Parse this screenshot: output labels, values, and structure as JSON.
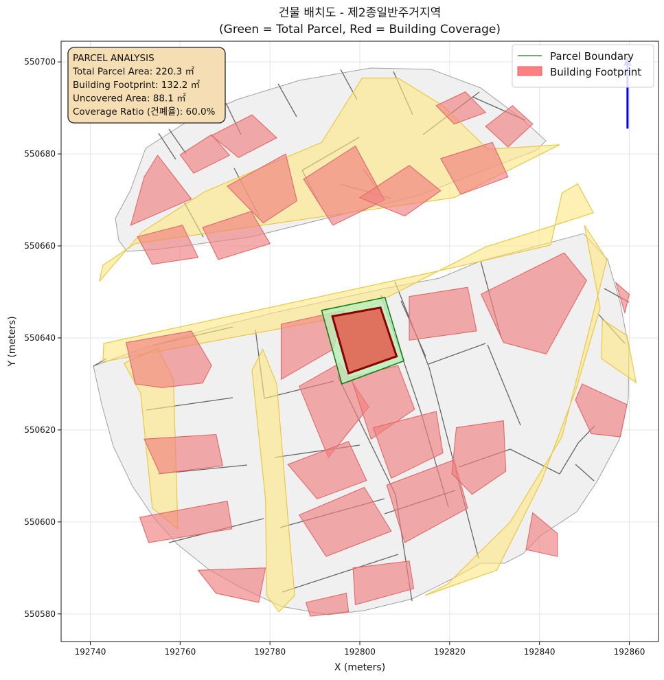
{
  "chart_data": {
    "type": "map",
    "title": "건물 배치도 - 제2종일반주거지역",
    "subtitle": "(Green = Total Parcel, Red = Building Coverage)",
    "xlabel": "X (meters)",
    "ylabel": "Y (meters)",
    "xlim": [
      192733.5,
      192866.5
    ],
    "ylim": [
      550574,
      550704.5
    ],
    "xticks": [
      192740,
      192760,
      192780,
      192800,
      192820,
      192840,
      192860
    ],
    "yticks": [
      550580,
      550600,
      550620,
      550640,
      550660,
      550680,
      550700
    ],
    "grid": true,
    "legend": {
      "placement": "top-right",
      "entries": [
        {
          "label": "Parcel Boundary",
          "kind": "line",
          "color": "#1a7a1a"
        },
        {
          "label": "Building Footprint",
          "kind": "patch",
          "color": "#ff8080"
        }
      ]
    },
    "info_box": {
      "placement": "top-left",
      "lines": [
        "PARCEL ANALYSIS",
        "Total Parcel Area: 220.3 ㎡",
        "Building Footprint: 132.2 ㎡",
        "Uncovered Area: 88.1 ㎡",
        "Coverage Ratio (건폐율): 60.0%"
      ]
    },
    "target_parcel": {
      "area_m2": 220.3,
      "boundary": [
        [
          192791.5,
          550646
        ],
        [
          192805.6,
          550648.8
        ],
        [
          192809.8,
          550635
        ],
        [
          192796,
          550630
        ]
      ],
      "building_footprint_m2": 132.2,
      "building": [
        [
          192793.9,
          550644.7
        ],
        [
          192804.6,
          550646.6
        ],
        [
          192808.2,
          550636
        ],
        [
          192797.5,
          550632.3
        ]
      ],
      "uncovered_m2": 88.1,
      "coverage_ratio_pct": 60.0
    },
    "north_arrow": {
      "x": 192859.6,
      "y_top": 550701,
      "y_bottom": 550685.5
    },
    "roads": [
      [
        [
          192742,
          550652.3
        ],
        [
          192751.5,
          550663
        ],
        [
          192765.5,
          550671.8
        ],
        [
          192791.5,
          550682.5
        ],
        [
          192800.5,
          550696.5
        ],
        [
          192808.5,
          550696.5
        ],
        [
          192818.5,
          550690.5
        ],
        [
          192828.5,
          550681
        ],
        [
          192844.5,
          550682
        ],
        [
          192821,
          550670.5
        ],
        [
          192750,
          550660.5
        ],
        [
          192742.8,
          550655.8
        ]
      ],
      [
        [
          192743,
          550638.8
        ],
        [
          192820.5,
          550655.2
        ],
        [
          192842.5,
          550660.2
        ],
        [
          192845,
          550671.5
        ],
        [
          192848.5,
          550673.5
        ],
        [
          192852,
          550667.2
        ],
        [
          192845,
          550665
        ],
        [
          192828,
          550659.8
        ],
        [
          192798.5,
          550645
        ],
        [
          192742.8,
          550634.8
        ]
      ],
      [
        [
          192747.5,
          550634.5
        ],
        [
          192751.2,
          550628
        ],
        [
          192753.8,
          550603
        ],
        [
          192759.5,
          550598.5
        ],
        [
          192758.5,
          550631
        ],
        [
          192755,
          550637.8
        ]
      ],
      [
        [
          192778.4,
          550637.5
        ],
        [
          192781.5,
          550630
        ],
        [
          192784.5,
          550595
        ],
        [
          192785.5,
          550584
        ],
        [
          192782,
          550580.5
        ],
        [
          192779.3,
          550584
        ],
        [
          192779,
          550605
        ],
        [
          192776,
          550633
        ]
      ],
      [
        [
          192850,
          550664.5
        ],
        [
          192855,
          550657
        ],
        [
          192845,
          550618.5
        ],
        [
          192833.5,
          550600
        ],
        [
          192819.5,
          550586.5
        ],
        [
          192814.5,
          550584
        ],
        [
          192830.5,
          550589.5
        ],
        [
          192840.5,
          550609
        ],
        [
          192848.2,
          550629
        ],
        [
          192853.5,
          550646.5
        ]
      ],
      [
        [
          192854,
          550644
        ],
        [
          192859.5,
          550640.5
        ],
        [
          192861.5,
          550630.3
        ],
        [
          192853.8,
          550635.5
        ]
      ]
    ],
    "buildings": [
      [
        [
          192750.5,
          550662
        ],
        [
          192760.5,
          550664.5
        ],
        [
          192764,
          550657.5
        ],
        [
          192753.8,
          550656
        ]
      ],
      [
        [
          192765,
          550664
        ],
        [
          192775.8,
          550667.5
        ],
        [
          192780,
          550660.5
        ],
        [
          192768.5,
          550657
        ]
      ],
      [
        [
          192752,
          550675
        ],
        [
          192755,
          550679.7
        ],
        [
          192762.5,
          550670.2
        ],
        [
          192749,
          550664.5
        ]
      ],
      [
        [
          192760,
          550679.8
        ],
        [
          192767,
          550684.2
        ],
        [
          192771,
          550679.7
        ],
        [
          192763,
          550675.8
        ]
      ],
      [
        [
          192767,
          550684
        ],
        [
          192776,
          550688.5
        ],
        [
          192781.5,
          550683.5
        ],
        [
          192773,
          550679.2
        ]
      ],
      [
        [
          192770.5,
          550673
        ],
        [
          192783.5,
          550680
        ],
        [
          192786,
          550669.8
        ],
        [
          192778.5,
          550665
        ]
      ],
      [
        [
          192787.5,
          550674.5
        ],
        [
          192799,
          550681.7
        ],
        [
          192805.5,
          550670
        ],
        [
          192794,
          550664.5
        ]
      ],
      [
        [
          192800,
          550670.5
        ],
        [
          192811,
          550677.5
        ],
        [
          192818,
          550672
        ],
        [
          192810,
          550666.5
        ]
      ],
      [
        [
          192817,
          550690.5
        ],
        [
          192823.5,
          550693.5
        ],
        [
          192828,
          550689
        ],
        [
          192821,
          550686.5
        ]
      ],
      [
        [
          192818,
          550679
        ],
        [
          192829.5,
          550682.5
        ],
        [
          192833,
          550675
        ],
        [
          192822.5,
          550671.2
        ]
      ],
      [
        [
          192828,
          550686
        ],
        [
          192834,
          550690.5
        ],
        [
          192838.5,
          550686.5
        ],
        [
          192833,
          550681.5
        ]
      ],
      [
        [
          192750,
          550630
        ],
        [
          192756,
          550629.2
        ],
        [
          192765,
          550630.2
        ],
        [
          192767,
          550634
        ],
        [
          192762.5,
          550641.5
        ],
        [
          192748,
          550639
        ]
      ],
      [
        [
          192752,
          550618
        ],
        [
          192768,
          550619
        ],
        [
          192769.5,
          550612.2
        ],
        [
          192755.5,
          550610.5
        ]
      ],
      [
        [
          192751,
          550601
        ],
        [
          192770.5,
          550604.5
        ],
        [
          192771.5,
          550598.5
        ],
        [
          192753,
          550595.5
        ]
      ],
      [
        [
          192764,
          550589.5
        ],
        [
          192779,
          550590
        ],
        [
          192777.5,
          550582.5
        ],
        [
          192768,
          550584.5
        ]
      ],
      [
        [
          192782.5,
          550643
        ],
        [
          192796.5,
          550646
        ],
        [
          192794,
          550637.5
        ],
        [
          192782.5,
          550631
        ]
      ],
      [
        [
          192786.5,
          550629.5
        ],
        [
          192795.5,
          550634.5
        ],
        [
          192802,
          550625
        ],
        [
          192793,
          550614
        ]
      ],
      [
        [
          192798,
          550631.5
        ],
        [
          192808.5,
          550634
        ],
        [
          192812.2,
          550624.5
        ],
        [
          192802.5,
          550618
        ]
      ],
      [
        [
          192784,
          550612.5
        ],
        [
          192797.5,
          550617.5
        ],
        [
          192801.5,
          550609
        ],
        [
          192790.5,
          550605
        ]
      ],
      [
        [
          192786.5,
          550601.5
        ],
        [
          192801,
          550607.5
        ],
        [
          192807,
          550598
        ],
        [
          192792.5,
          550592.5
        ]
      ],
      [
        [
          192803,
          550620.5
        ],
        [
          192817,
          550624
        ],
        [
          192818.5,
          550615
        ],
        [
          192807,
          550609.5
        ]
      ],
      [
        [
          192806,
          550608
        ],
        [
          192821,
          550613.5
        ],
        [
          192824,
          550603
        ],
        [
          192810,
          550595.5
        ]
      ],
      [
        [
          192798.5,
          550590
        ],
        [
          192811,
          550591.5
        ],
        [
          192812,
          550585.5
        ],
        [
          192799,
          550582
        ]
      ],
      [
        [
          192788,
          550582.5
        ],
        [
          192797,
          550584.5
        ],
        [
          192797.5,
          550580.5
        ],
        [
          192789,
          550579.5
        ]
      ],
      [
        [
          192811,
          550649
        ],
        [
          192824,
          550651
        ],
        [
          192826,
          550641.5
        ],
        [
          192811,
          550639.5
        ]
      ],
      [
        [
          192827,
          550649.5
        ],
        [
          192845.5,
          550658.5
        ],
        [
          192850.5,
          550652.5
        ],
        [
          192841.5,
          550636.5
        ],
        [
          192832,
          550639
        ]
      ],
      [
        [
          192821.5,
          550620.5
        ],
        [
          192832,
          550622
        ],
        [
          192832.5,
          550611
        ],
        [
          192825,
          550606
        ],
        [
          192820.5,
          550610.5
        ]
      ],
      [
        [
          192838.5,
          550602
        ],
        [
          192844,
          550597.5
        ],
        [
          192844,
          550592.5
        ],
        [
          192837,
          550594
        ]
      ],
      [
        [
          192849.5,
          550630
        ],
        [
          192859.5,
          550625.5
        ],
        [
          192858,
          550618.5
        ],
        [
          192851.5,
          550619.2
        ],
        [
          192848,
          550626.5
        ]
      ],
      [
        [
          192857,
          550652
        ],
        [
          192860,
          550649.5
        ],
        [
          192859,
          550645.5
        ]
      ]
    ]
  }
}
